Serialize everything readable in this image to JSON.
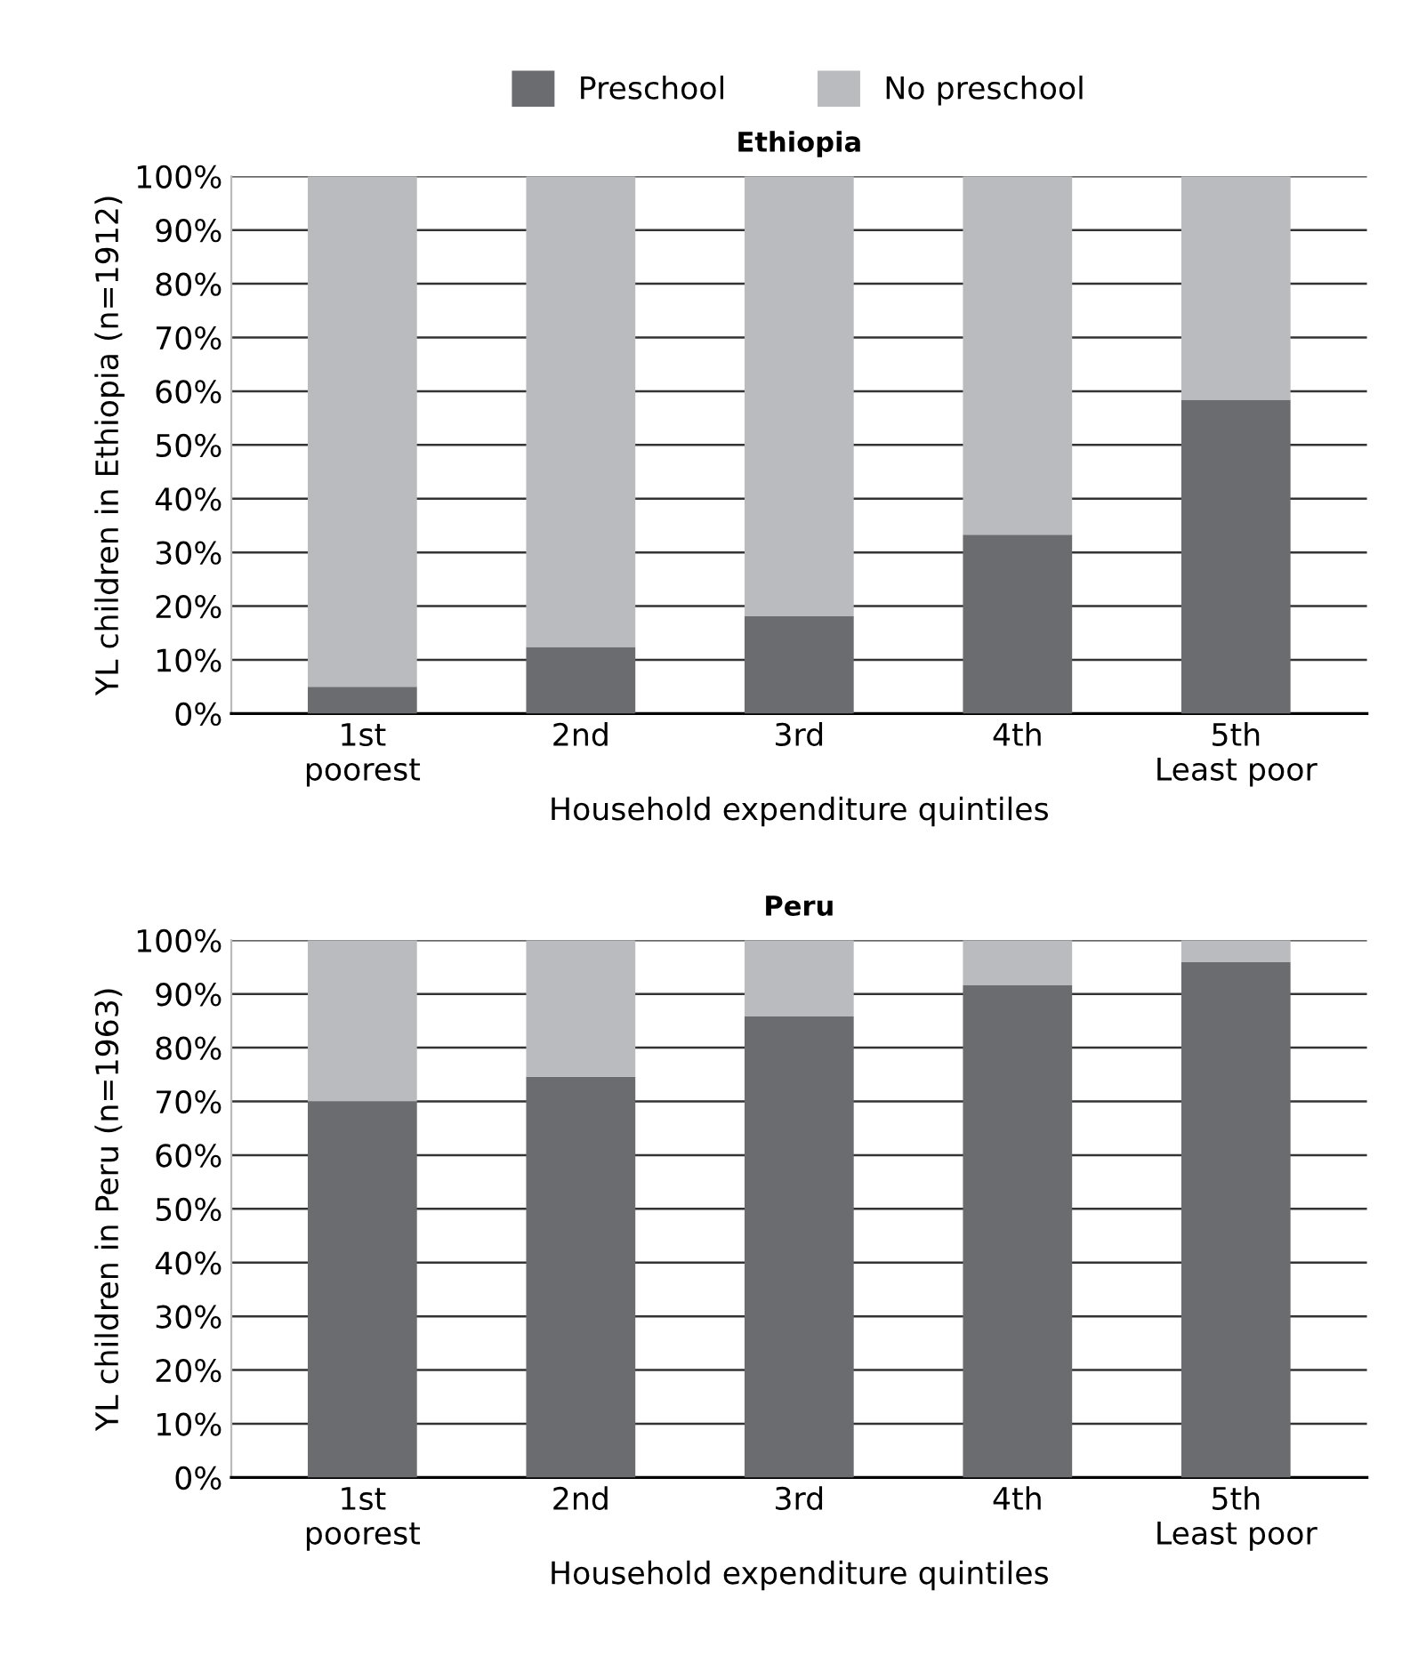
{
  "chart_data": [
    {
      "type": "bar",
      "title": "Ethiopia",
      "xlabel": "Household expenditure quintiles",
      "ylabel": "YL children in Ethiopia (n=1912)",
      "stacked": true,
      "legend": "top",
      "grid": "y",
      "categories": [
        "1st\npoorest",
        "2nd",
        "3rd",
        "4th",
        "5th\nLeast poor"
      ],
      "series": [
        {
          "name": "Preschool",
          "color": "#6b6c70",
          "values": [
            5.0,
            12.4,
            18.1,
            33.3,
            58.4
          ]
        },
        {
          "name": "No preschool",
          "color": "#babbbf",
          "values": [
            95.0,
            87.6,
            81.9,
            66.7,
            41.6
          ]
        }
      ],
      "ylim": [
        0,
        100
      ],
      "yticks": [
        {
          "value": 0,
          "label": "0%"
        },
        {
          "value": 10,
          "label": "10%"
        },
        {
          "value": 20,
          "label": "20%"
        },
        {
          "value": 30,
          "label": "30%"
        },
        {
          "value": 40,
          "label": "40%"
        },
        {
          "value": 50,
          "label": "50%"
        },
        {
          "value": 60,
          "label": "60%"
        },
        {
          "value": 70,
          "label": "70%"
        },
        {
          "value": 80,
          "label": "80%"
        },
        {
          "value": 90,
          "label": "90%"
        },
        {
          "value": 100,
          "label": "100%"
        }
      ]
    },
    {
      "type": "bar",
      "title": "Peru",
      "xlabel": "Household expenditure quintiles",
      "ylabel": "YL children in Peru (n=1963)",
      "stacked": true,
      "grid": "y",
      "categories": [
        "1st\npoorest",
        "2nd",
        "3rd",
        "4th",
        "5th\nLeast poor"
      ],
      "series": [
        {
          "color": "#6b6c70",
          "values": [
            70.0,
            74.6,
            85.8,
            91.7,
            95.9
          ]
        },
        {
          "color": "#babbbf",
          "values": [
            30.0,
            25.4,
            14.2,
            8.3,
            4.1
          ]
        }
      ],
      "ylim": [
        0,
        100
      ],
      "yticks": [
        {
          "value": 0,
          "label": "0%"
        },
        {
          "value": 10,
          "label": "10%"
        },
        {
          "value": 20,
          "label": "20%"
        },
        {
          "value": 30,
          "label": "30%"
        },
        {
          "value": 40,
          "label": "40%"
        },
        {
          "value": 50,
          "label": "50%"
        },
        {
          "value": 60,
          "label": "60%"
        },
        {
          "value": 70,
          "label": "70%"
        },
        {
          "value": 80,
          "label": "80%"
        },
        {
          "value": 90,
          "label": "90%"
        },
        {
          "value": 100,
          "label": "100%"
        }
      ]
    }
  ]
}
